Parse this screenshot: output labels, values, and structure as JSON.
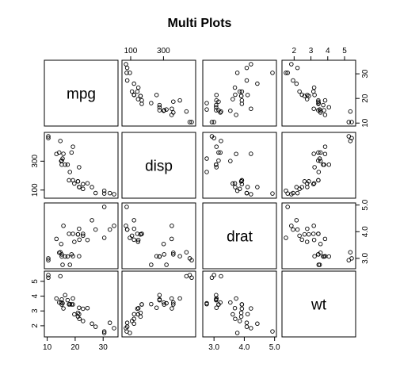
{
  "chart_data": {
    "type": "scatter",
    "title": "Multi Plots",
    "variables": [
      {
        "name": "mpg",
        "range": [
          10.4,
          33.9
        ],
        "ticks": [
          10,
          20,
          30
        ],
        "tick_labels": [
          "10",
          "20",
          "30"
        ],
        "values": [
          21.0,
          21.0,
          22.8,
          21.4,
          18.7,
          18.1,
          14.3,
          24.4,
          22.8,
          19.2,
          17.8,
          16.4,
          17.3,
          15.2,
          10.4,
          10.4,
          14.7,
          32.4,
          30.4,
          33.9,
          21.5,
          15.5,
          15.2,
          13.3,
          19.2,
          27.3,
          26.0,
          30.4,
          15.8,
          19.7,
          15.0,
          21.4
        ]
      },
      {
        "name": "disp",
        "range": [
          71.1,
          472.0
        ],
        "ticks": [
          100,
          300
        ],
        "tick_labels": [
          "100",
          "300"
        ],
        "values": [
          160,
          160,
          108,
          258,
          360,
          225,
          360,
          146.7,
          140.8,
          167.6,
          167.6,
          275.8,
          275.8,
          275.8,
          472,
          460,
          440,
          78.7,
          75.7,
          71.1,
          120.1,
          318,
          304,
          350,
          400,
          79,
          120.3,
          95.1,
          351,
          145,
          301,
          121
        ]
      },
      {
        "name": "drat",
        "range": [
          2.76,
          4.93
        ],
        "ticks": [
          3.0,
          4.0,
          5.0
        ],
        "tick_labels": [
          "3.0",
          "4.0",
          "5.0"
        ],
        "values": [
          3.9,
          3.9,
          3.85,
          3.08,
          3.15,
          2.76,
          3.21,
          3.69,
          3.92,
          3.92,
          3.92,
          3.07,
          3.07,
          3.07,
          2.93,
          3.0,
          3.23,
          4.08,
          4.93,
          4.22,
          3.7,
          2.76,
          3.15,
          3.73,
          3.08,
          4.08,
          4.43,
          3.77,
          4.22,
          3.62,
          3.54,
          4.11
        ]
      },
      {
        "name": "wt",
        "range": [
          1.513,
          5.424
        ],
        "ticks": [
          2,
          3,
          4,
          5
        ],
        "tick_labels": [
          "2",
          "3",
          "4",
          "5"
        ],
        "values": [
          2.62,
          2.875,
          2.32,
          3.215,
          3.44,
          3.46,
          3.57,
          3.19,
          3.15,
          3.44,
          3.44,
          4.07,
          3.73,
          3.78,
          5.25,
          5.424,
          5.345,
          2.2,
          1.615,
          1.835,
          2.465,
          3.52,
          3.435,
          3.84,
          3.845,
          1.935,
          2.14,
          1.513,
          3.17,
          2.77,
          3.57,
          2.78
        ]
      }
    ],
    "axes": {
      "bottom_labels_on": [
        "mpg",
        "drat"
      ],
      "top_labels_on": [
        "disp",
        "wt"
      ],
      "left_labels_on": [
        "disp",
        "wt"
      ],
      "right_labels_on": [
        "mpg",
        "drat"
      ]
    },
    "grid": false,
    "legend": "none"
  }
}
